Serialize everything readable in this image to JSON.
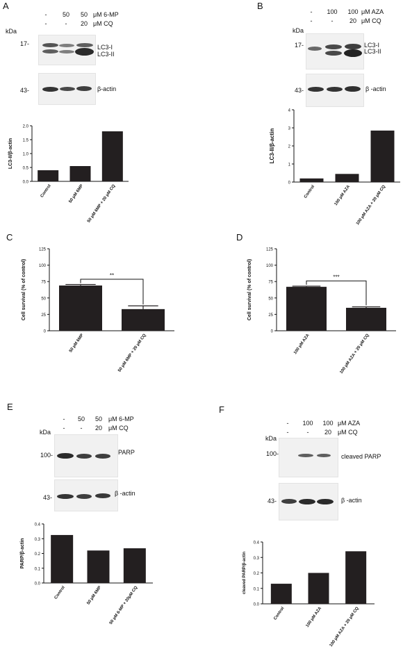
{
  "panels": {
    "A": {
      "label": "A",
      "header": {
        "row1": [
          "-",
          "50",
          "50"
        ],
        "row1_unit": "μM 6-MP",
        "row2": [
          "-",
          "-",
          "20"
        ],
        "row2_unit": "μM CQ"
      },
      "kda": "kDa",
      "blot1": {
        "mw": "17-",
        "bands": [
          "LC3-I",
          "LC3-II"
        ]
      },
      "blot2": {
        "mw": "43-",
        "bands": [
          "β-actin"
        ]
      }
    },
    "B": {
      "label": "B",
      "header": {
        "row1": [
          "-",
          "100",
          "100"
        ],
        "row1_unit": "μM AZA",
        "row2": [
          "-",
          "-",
          "20"
        ],
        "row2_unit": "μM CQ"
      },
      "kda": "kDa",
      "blot1": {
        "mw": "17-",
        "bands": [
          "LC3-I",
          "LC3-II"
        ]
      },
      "blot2": {
        "mw": "43-",
        "bands": [
          "β -actin"
        ]
      }
    },
    "C": {
      "label": "C"
    },
    "D": {
      "label": "D"
    },
    "E": {
      "label": "E",
      "header": {
        "row1": [
          "-",
          "50",
          "50"
        ],
        "row1_unit": "μM 6-MP",
        "row2": [
          "-",
          "-",
          "20"
        ],
        "row2_unit": "μM CQ"
      },
      "kda": "kDa",
      "blot1": {
        "mw": "100-",
        "bands": [
          "PARP"
        ]
      },
      "blot2": {
        "mw": "43-",
        "bands": [
          "β -actin"
        ]
      }
    },
    "F": {
      "label": "F",
      "header": {
        "row1": [
          "-",
          "100",
          "100"
        ],
        "row1_unit": "μM AZA",
        "row2": [
          "-",
          "-",
          "20"
        ],
        "row2_unit": "μM CQ"
      },
      "kda": "kDa",
      "blot1": {
        "mw": "100-",
        "bands": [
          "cleaved PARP"
        ]
      },
      "blot2": {
        "mw": "43-",
        "bands": [
          "β -actin"
        ]
      }
    }
  },
  "chart_data": [
    {
      "id": "A",
      "type": "bar",
      "categories": [
        "Control",
        "50 μM 6MP",
        "50 μM 6MP + 20 μM CQ"
      ],
      "values": [
        0.4,
        0.55,
        1.8
      ],
      "ylabel": "LC3-II/β-actin",
      "ylim": [
        0,
        2.0
      ],
      "yticks": [
        "0.0",
        "0.5",
        "1.0",
        "1.5",
        "2.0"
      ]
    },
    {
      "id": "B",
      "type": "bar",
      "categories": [
        "Control",
        "100 μM AZA",
        "100 μM AZA + 20 μM CQ"
      ],
      "values": [
        0.2,
        0.45,
        2.85
      ],
      "ylabel": "LC3-II/β-actin",
      "ylim": [
        0,
        4
      ],
      "yticks": [
        "0",
        "1",
        "2",
        "3",
        "4"
      ]
    },
    {
      "id": "C",
      "type": "bar",
      "categories": [
        "50 μM 6MP",
        "50 μM 6MP + 20 μM CQ"
      ],
      "values": [
        69,
        33
      ],
      "errors": [
        1.5,
        5
      ],
      "ylabel": "Cell survival (% of control)",
      "ylim": [
        0,
        125
      ],
      "yticks": [
        "0",
        "25",
        "50",
        "75",
        "100",
        "125"
      ],
      "significance": "**"
    },
    {
      "id": "D",
      "type": "bar",
      "categories": [
        "100 μM AZA",
        "100 μM AZA + 20 μM CQ"
      ],
      "values": [
        67,
        35
      ],
      "errors": [
        1,
        1.5
      ],
      "ylabel": "Cell survival (% of control)",
      "ylim": [
        0,
        125
      ],
      "yticks": [
        "0",
        "25",
        "50",
        "75",
        "100",
        "125"
      ],
      "significance": "***"
    },
    {
      "id": "E",
      "type": "bar",
      "categories": [
        "Control",
        "50 μM 6MP",
        "50 μM 6-MP + 20μM CQ"
      ],
      "values": [
        0.325,
        0.22,
        0.235
      ],
      "ylabel": "PARP/β-actin",
      "ylim": [
        0,
        0.4
      ],
      "yticks": [
        "0.0",
        "0.1",
        "0.2",
        "0.3",
        "0.4"
      ]
    },
    {
      "id": "F",
      "type": "bar",
      "categories": [
        "Control",
        "100 μM AZA",
        "100 μM AZA + 20 μM CQ"
      ],
      "values": [
        0.13,
        0.2,
        0.34
      ],
      "ylabel": "cleaved PARP/β-actin",
      "ylim": [
        0,
        0.4
      ],
      "yticks": [
        "0.0",
        "0.1",
        "0.2",
        "0.3",
        "0.4"
      ]
    }
  ]
}
